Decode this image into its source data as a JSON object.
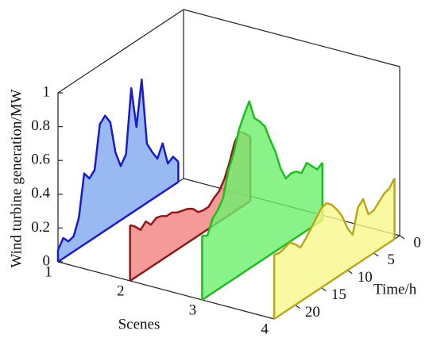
{
  "chart_data": {
    "type": "waterfall3d",
    "z_label": "Wind turbine generation/MW",
    "x_label": "Time/h",
    "scene_label": "Scenes",
    "categories": [
      "1",
      "2",
      "3",
      "4"
    ],
    "x": [
      1,
      2,
      3,
      4,
      5,
      6,
      7,
      8,
      9,
      10,
      11,
      12,
      13,
      14,
      15,
      16,
      17,
      18,
      19,
      20,
      21,
      22,
      23,
      24
    ],
    "xlim": [
      0,
      24
    ],
    "xticks": [
      0,
      5,
      10,
      15,
      20
    ],
    "zlim": [
      0,
      1
    ],
    "zticks": [
      0,
      0.2,
      0.4,
      0.6,
      0.8,
      1
    ],
    "series": [
      {
        "color": "#7fa8f0",
        "line_color": "#1a1ac8",
        "values": [
          0.12,
          0.17,
          0.15,
          0.29,
          0.22,
          0.28,
          0.35,
          0.75,
          0.49,
          0.74,
          0.37,
          0.32,
          0.42,
          0.62,
          0.68,
          0.65,
          0.4,
          0.37,
          0.42,
          0.18,
          0.09,
          0.08,
          0.12,
          0.07
        ]
      },
      {
        "color": "#f27f7f",
        "line_color": "#8b1a1a",
        "values": [
          0.38,
          0.42,
          0.45,
          0.41,
          0.31,
          0.23,
          0.18,
          0.16,
          0.13,
          0.13,
          0.14,
          0.18,
          0.2,
          0.21,
          0.22,
          0.24,
          0.24,
          0.26,
          0.27,
          0.25,
          0.29,
          0.26,
          0.3,
          0.33
        ]
      },
      {
        "color": "#6cf06c",
        "line_color": "#22bb22",
        "values": [
          0.34,
          0.32,
          0.36,
          0.4,
          0.36,
          0.39,
          0.4,
          0.39,
          0.47,
          0.59,
          0.68,
          0.78,
          0.83,
          0.87,
          0.99,
          0.93,
          0.86,
          0.74,
          0.66,
          0.52,
          0.47,
          0.44,
          0.36,
          0.38
        ]
      },
      {
        "color": "#f8f88a",
        "line_color": "#b8a820",
        "values": [
          0.36,
          0.32,
          0.31,
          0.28,
          0.25,
          0.25,
          0.36,
          0.33,
          0.19,
          0.25,
          0.34,
          0.4,
          0.45,
          0.48,
          0.47,
          0.43,
          0.39,
          0.35,
          0.32,
          0.36,
          0.39,
          0.38,
          0.37,
          0.38
        ]
      }
    ]
  }
}
